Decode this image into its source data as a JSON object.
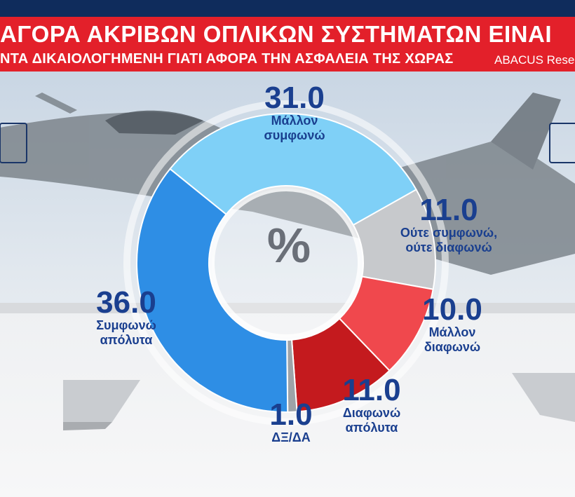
{
  "header": {
    "title_line1": "ΑΓΟΡΑ ΑΚΡΙΒΩΝ ΟΠΛΙΚΩΝ ΣΥΣΤΗΜΑΤΩΝ ΕΙΝΑΙ",
    "title_line2": "ΝΤΑ ΔΙΚΑΙΟΛΟΓΗΜΕΝΗ ΓΙΑΤΙ ΑΦΟΡΑ ΤΗΝ ΑΣΦΑΛΕΙΑ ΤΗΣ ΧΩΡΑΣ",
    "source": "ABACUS Rese"
  },
  "colors": {
    "banner": "#e3202a",
    "topbar": "#0f2c5c",
    "label_text": "#1a3f8f"
  },
  "chart_data": {
    "type": "pie",
    "variant": "donut",
    "center_label": "%",
    "slices": [
      {
        "label": "Μάλλον\nσυμφωνώ",
        "value": 31.0,
        "display": "31.0",
        "color": "#7fd0f7"
      },
      {
        "label": "Ούτε συμφωνώ,\nούτε διαφωνώ",
        "value": 11.0,
        "display": "11.0",
        "color": "#c7c9cc"
      },
      {
        "label": "Μάλλον\nδιαφωνώ",
        "value": 10.0,
        "display": "10.0",
        "color": "#f0484d"
      },
      {
        "label": "Διαφωνώ\nαπόλυτα",
        "value": 11.0,
        "display": "11.0",
        "color": "#c41a1e"
      },
      {
        "label": "ΔΞ/ΔΑ",
        "value": 1.0,
        "display": "1.0",
        "color": "#9ea3a8"
      },
      {
        "label": "Συμφωνώ\nαπόλυτα",
        "value": 36.0,
        "display": "36.0",
        "color": "#2e8ee5"
      }
    ]
  }
}
